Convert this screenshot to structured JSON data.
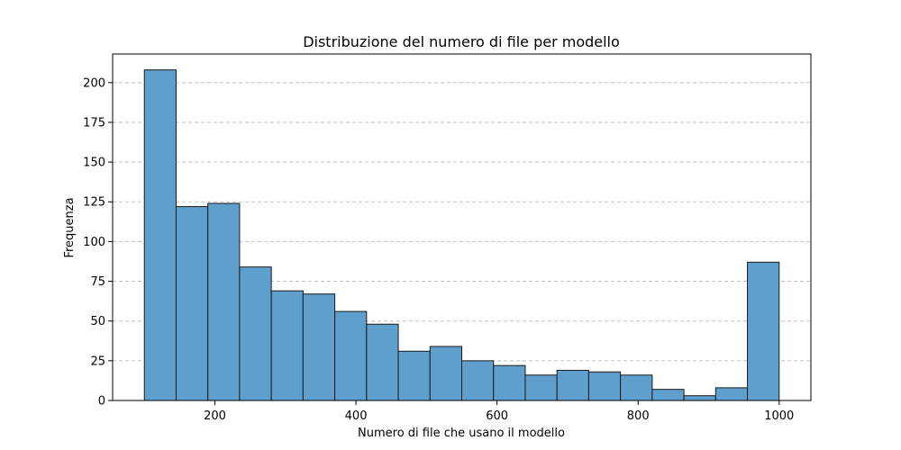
{
  "chart_data": {
    "type": "bar",
    "title": "Distribuzione del numero di file per modello",
    "xlabel": "Numero di file che usano il modello",
    "ylabel": "Frequenza",
    "xlim": [
      55,
      1045
    ],
    "ylim": [
      0,
      218
    ],
    "xticks": [
      200,
      400,
      600,
      800,
      1000
    ],
    "yticks": [
      0,
      25,
      50,
      75,
      100,
      125,
      150,
      175,
      200
    ],
    "grid": "y-dashed",
    "bar_color": "#5f9fcd",
    "edge_color": "#1a1a1a",
    "grid_color": "#c0c0c0",
    "bins": [
      {
        "x0": 100,
        "x1": 145,
        "value": 208
      },
      {
        "x0": 145,
        "x1": 190,
        "value": 122
      },
      {
        "x0": 190,
        "x1": 235,
        "value": 124
      },
      {
        "x0": 235,
        "x1": 280,
        "value": 84
      },
      {
        "x0": 280,
        "x1": 325,
        "value": 69
      },
      {
        "x0": 325,
        "x1": 370,
        "value": 67
      },
      {
        "x0": 370,
        "x1": 415,
        "value": 56
      },
      {
        "x0": 415,
        "x1": 460,
        "value": 48
      },
      {
        "x0": 460,
        "x1": 505,
        "value": 31
      },
      {
        "x0": 505,
        "x1": 550,
        "value": 34
      },
      {
        "x0": 550,
        "x1": 595,
        "value": 25
      },
      {
        "x0": 595,
        "x1": 640,
        "value": 22
      },
      {
        "x0": 640,
        "x1": 685,
        "value": 16
      },
      {
        "x0": 685,
        "x1": 730,
        "value": 19
      },
      {
        "x0": 730,
        "x1": 775,
        "value": 18
      },
      {
        "x0": 775,
        "x1": 820,
        "value": 16
      },
      {
        "x0": 820,
        "x1": 865,
        "value": 7
      },
      {
        "x0": 865,
        "x1": 910,
        "value": 3
      },
      {
        "x0": 910,
        "x1": 955,
        "value": 8
      },
      {
        "x0": 955,
        "x1": 1000,
        "value": 87
      }
    ]
  }
}
